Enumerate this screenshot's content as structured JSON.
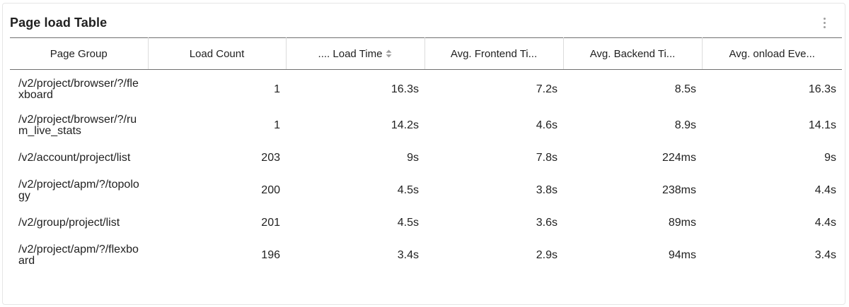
{
  "widget": {
    "title": "Page load Table",
    "menu_icon": "kebab-vertical-icon"
  },
  "table": {
    "columns": [
      {
        "label": "Page Group"
      },
      {
        "label": "Load Count"
      },
      {
        "label": ".... Load Time",
        "sort_icon": "sort-arrows-icon"
      },
      {
        "label": "Avg. Frontend Ti..."
      },
      {
        "label": "Avg. Backend Ti..."
      },
      {
        "label": "Avg. onload Eve..."
      }
    ],
    "rows": [
      {
        "page_group": "/v2/project/browser/?/flexboard",
        "load_count": "1",
        "load_time": "16.3s",
        "frontend": "7.2s",
        "backend": "8.5s",
        "onload": "16.3s"
      },
      {
        "page_group": "/v2/project/browser/?/rum_live_stats",
        "load_count": "1",
        "load_time": "14.2s",
        "frontend": "4.6s",
        "backend": "8.9s",
        "onload": "14.1s"
      },
      {
        "page_group": "/v2/account/project/list",
        "load_count": "203",
        "load_time": "9s",
        "frontend": "7.8s",
        "backend": "224ms",
        "onload": "9s"
      },
      {
        "page_group": "/v2/project/apm/?/topology",
        "load_count": "200",
        "load_time": "4.5s",
        "frontend": "3.8s",
        "backend": "238ms",
        "onload": "4.4s"
      },
      {
        "page_group": "/v2/group/project/list",
        "load_count": "201",
        "load_time": "4.5s",
        "frontend": "3.6s",
        "backend": "89ms",
        "onload": "4.4s"
      },
      {
        "page_group": "/v2/project/apm/?/flexboard",
        "load_count": "196",
        "load_time": "3.4s",
        "frontend": "2.9s",
        "backend": "94ms",
        "onload": "3.4s"
      }
    ]
  },
  "colors": {
    "header_rule": "#707070",
    "column_divider": "#dcdcdc",
    "icon_gray": "#9e9e9e",
    "text": "#212121"
  }
}
